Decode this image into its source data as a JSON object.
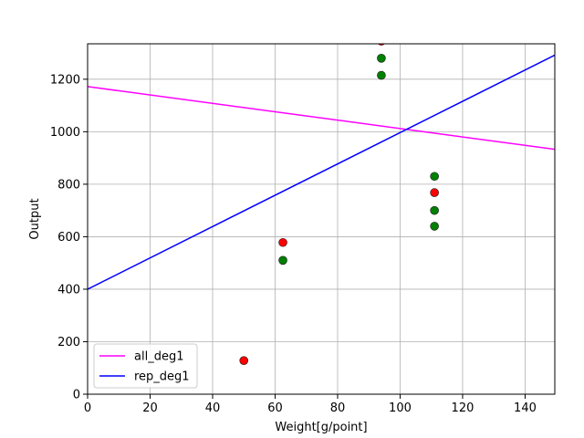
{
  "chart_data": {
    "type": "scatter",
    "xlabel": "Weight[g/point]",
    "ylabel": "Output",
    "xlim": [
      0,
      149.5
    ],
    "ylim": [
      0,
      1335
    ],
    "grid": true,
    "legend_position": "lower-left",
    "xticks": [
      0,
      20,
      40,
      60,
      80,
      100,
      120,
      140
    ],
    "yticks": [
      0,
      200,
      400,
      600,
      800,
      1000,
      1200
    ],
    "points": [
      {
        "x": 62.5,
        "y": 510,
        "color": "#008000"
      },
      {
        "x": 94,
        "y": 1280,
        "color": "#008000"
      },
      {
        "x": 94,
        "y": 1215,
        "color": "#008000"
      },
      {
        "x": 111,
        "y": 830,
        "color": "#008000"
      },
      {
        "x": 111,
        "y": 700,
        "color": "#008000"
      },
      {
        "x": 111,
        "y": 640,
        "color": "#008000"
      },
      {
        "x": 50,
        "y": 128,
        "color": "#ff0000"
      },
      {
        "x": 62.5,
        "y": 578,
        "color": "#ff0000"
      },
      {
        "x": 94,
        "y": 1345,
        "color": "#ff0000"
      },
      {
        "x": 111,
        "y": 768,
        "color": "#ff0000"
      }
    ],
    "series": [
      {
        "name": "all_deg1",
        "color": "#ff00ff",
        "x": [
          0,
          149.5
        ],
        "y": [
          1172,
          933
        ]
      },
      {
        "name": "rep_deg1",
        "color": "#0000ff",
        "x": [
          0,
          149.5
        ],
        "y": [
          400,
          1292
        ]
      }
    ]
  }
}
